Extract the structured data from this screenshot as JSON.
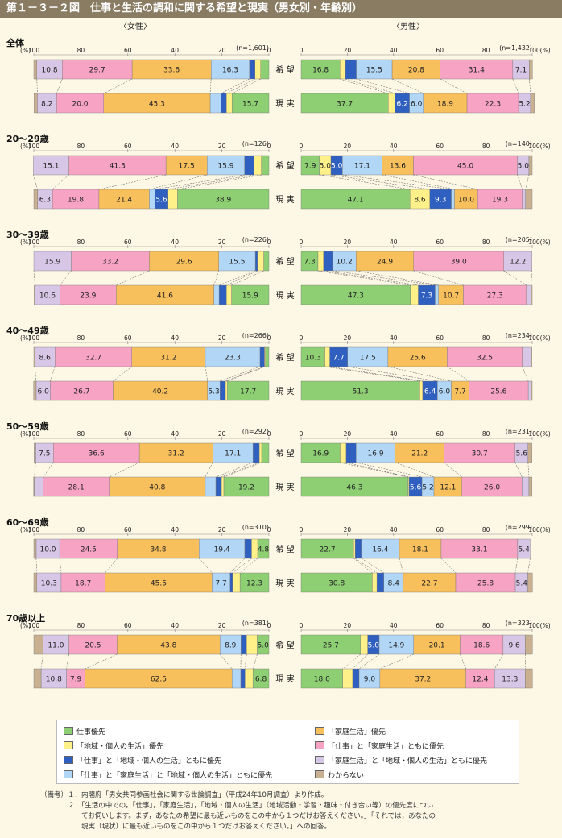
{
  "title": "第１－３－２図　仕事と生活の調和に関する希望と現実（男女別・年齢別）",
  "female_header": "〈女性〉",
  "male_header": "〈男性〉",
  "row_labels": {
    "hope": "希 望",
    "reality": "現 実"
  },
  "axis_ticks": [
    "100",
    "80",
    "60",
    "40",
    "20",
    "0"
  ],
  "axis_ticks_male": [
    "0",
    "20",
    "40",
    "60",
    "80",
    "100"
  ],
  "axis_unit": "(%)",
  "axis_unit_male": "100(%)",
  "legend": [
    {
      "label": "仕事優先",
      "color": "#8fcf74"
    },
    {
      "label": "「家庭生活」優先",
      "color": "#f8c05c"
    },
    {
      "label": "「地域・個人の生活」優先",
      "color": "#fff08a"
    },
    {
      "label": "「仕事」と「家庭生活」ともに優先",
      "color": "#f7a3c3"
    },
    {
      "label": "「仕事」と「地域・個人の生活」ともに優先",
      "color": "#2f5fbf"
    },
    {
      "label": "「家庭生活」と「地域・個人の生活」ともに優先",
      "color": "#d8c6e6"
    },
    {
      "label": "「仕事」と「家庭生活」と「地域・個人の生活」ともに優先",
      "color": "#b2d6f6"
    },
    {
      "label": "わからない",
      "color": "#c8b090"
    }
  ],
  "notes": [
    {
      "label": "（備考）",
      "text": "１．内閣府「男女共同参画社会に関する世論調査」（平成24年10月調査）より作成。"
    },
    {
      "label": "",
      "text": "２．「生活の中での，「仕事」，「家庭生活」，「地域・個人の生活」（地域活動・学習・趣味・付き合い等）の優先度につい"
    },
    {
      "label": "",
      "text": "　　てお伺いします。まず，あなたの希望に最も近いものをこの中から１つだけお答えください。」「それでは，あなたの"
    },
    {
      "label": "",
      "text": "　　現実（現状）に最も近いものをこの中から１つだけお答えください。」への回答。"
    }
  ],
  "chart_data": {
    "type": "bar",
    "categories_order": [
      "仕事優先",
      "「地域・個人の生活」優先",
      "「仕事」と「地域・個人の生活」ともに優先",
      "「仕事」と「家庭生活」と「地域・個人の生活」ともに優先",
      "「家庭生活」優先",
      "「仕事」と「家庭生活」ともに優先",
      "「家庭生活」と「地域・個人の生活」ともに優先",
      "わからない"
    ],
    "xlim": [
      0,
      100
    ],
    "groups": [
      {
        "label": "全体",
        "female": {
          "n": "(n=1,601)",
          "hope": [
            3.5,
            2.4,
            2.4,
            16.3,
            33.6,
            29.7,
            10.8,
            1.3
          ],
          "reality": [
            15.7,
            2.4,
            2.3,
            4.6,
            45.3,
            20.0,
            8.2,
            1.4
          ]
        },
        "male": {
          "n": "(n=1,432)",
          "hope": [
            16.8,
            2.4,
            4.7,
            15.5,
            20.8,
            31.4,
            7.1,
            1.4
          ],
          "reality": [
            37.7,
            3.0,
            6.2,
            6.0,
            18.9,
            22.3,
            5.2,
            1.7
          ]
        }
      },
      {
        "label": "20～29歳",
        "female": {
          "n": "(n=126)",
          "hope": [
            3.2,
            3.2,
            4.0,
            15.9,
            17.5,
            41.3,
            15.1,
            0.0
          ],
          "reality": [
            38.9,
            4.0,
            5.6,
            2.4,
            21.4,
            19.8,
            6.3,
            1.6
          ]
        },
        "male": {
          "n": "(n=140)",
          "hope": [
            7.9,
            5.0,
            5.0,
            17.1,
            13.6,
            45.0,
            5.0,
            1.4
          ],
          "reality": [
            47.1,
            8.6,
            9.3,
            1.4,
            10.0,
            19.3,
            1.4,
            2.9
          ]
        }
      },
      {
        "label": "30～39歳",
        "female": {
          "n": "(n=226)",
          "hope": [
            2.2,
            2.7,
            0.9,
            15.5,
            29.6,
            33.2,
            15.9,
            0.0
          ],
          "reality": [
            15.9,
            2.2,
            3.1,
            2.2,
            41.6,
            23.9,
            10.6,
            0.4
          ]
        },
        "male": {
          "n": "(n=205)",
          "hope": [
            7.3,
            2.4,
            3.9,
            10.2,
            24.9,
            39.0,
            12.2,
            0.0
          ],
          "reality": [
            47.3,
            3.4,
            7.3,
            1.5,
            10.7,
            27.3,
            2.0,
            0.5
          ]
        }
      },
      {
        "label": "40～49歳",
        "female": {
          "n": "(n=266)",
          "hope": [
            1.5,
            0.4,
            1.9,
            23.3,
            31.2,
            32.7,
            8.6,
            0.4
          ],
          "reality": [
            17.7,
            0.8,
            2.3,
            5.3,
            40.2,
            26.7,
            6.0,
            1.1
          ]
        },
        "male": {
          "n": "(n=234)",
          "hope": [
            10.3,
            2.1,
            7.7,
            17.5,
            25.6,
            32.5,
            3.8,
            0.4
          ],
          "reality": [
            51.3,
            1.3,
            6.4,
            6.0,
            7.7,
            25.6,
            1.3,
            0.4
          ]
        }
      },
      {
        "label": "50～59歳",
        "female": {
          "n": "(n=292)",
          "hope": [
            3.1,
            1.0,
            2.7,
            17.1,
            31.2,
            36.6,
            7.5,
            0.7
          ],
          "reality": [
            19.2,
            1.0,
            2.4,
            4.5,
            40.8,
            28.1,
            3.8,
            0.3
          ]
        },
        "male": {
          "n": "(n=231)",
          "hope": [
            16.9,
            2.6,
            4.3,
            16.9,
            21.2,
            30.7,
            5.6,
            1.7
          ],
          "reality": [
            46.3,
            0.4,
            5.6,
            5.2,
            12.1,
            26.0,
            3.0,
            1.3
          ]
        }
      },
      {
        "label": "60～69歳",
        "female": {
          "n": "(n=310)",
          "hope": [
            4.8,
            2.6,
            2.9,
            19.4,
            34.8,
            24.5,
            10.0,
            1.0
          ],
          "reality": [
            12.3,
            3.2,
            1.0,
            7.7,
            45.5,
            18.7,
            10.3,
            1.3
          ]
        },
        "male": {
          "n": "(n=299)",
          "hope": [
            22.7,
            0.7,
            2.7,
            16.4,
            18.1,
            33.1,
            5.4,
            0.0
          ],
          "reality": [
            30.8,
            2.0,
            3.0,
            8.4,
            22.7,
            25.8,
            5.4,
            2.0
          ]
        }
      },
      {
        "label": "70歳以上",
        "female": {
          "n": "(n=381)",
          "hope": [
            5.0,
            4.5,
            2.4,
            8.9,
            43.8,
            20.5,
            11.0,
            3.9
          ],
          "reality": [
            6.8,
            3.4,
            1.8,
            3.7,
            62.5,
            7.9,
            10.8,
            3.1
          ]
        },
        "male": {
          "n": "(n=323)",
          "hope": [
            25.7,
            3.1,
            5.0,
            14.9,
            20.1,
            18.6,
            9.6,
            3.1
          ],
          "reality": [
            18.0,
            4.3,
            2.8,
            9.0,
            37.2,
            12.4,
            13.3,
            3.1
          ]
        }
      }
    ]
  }
}
